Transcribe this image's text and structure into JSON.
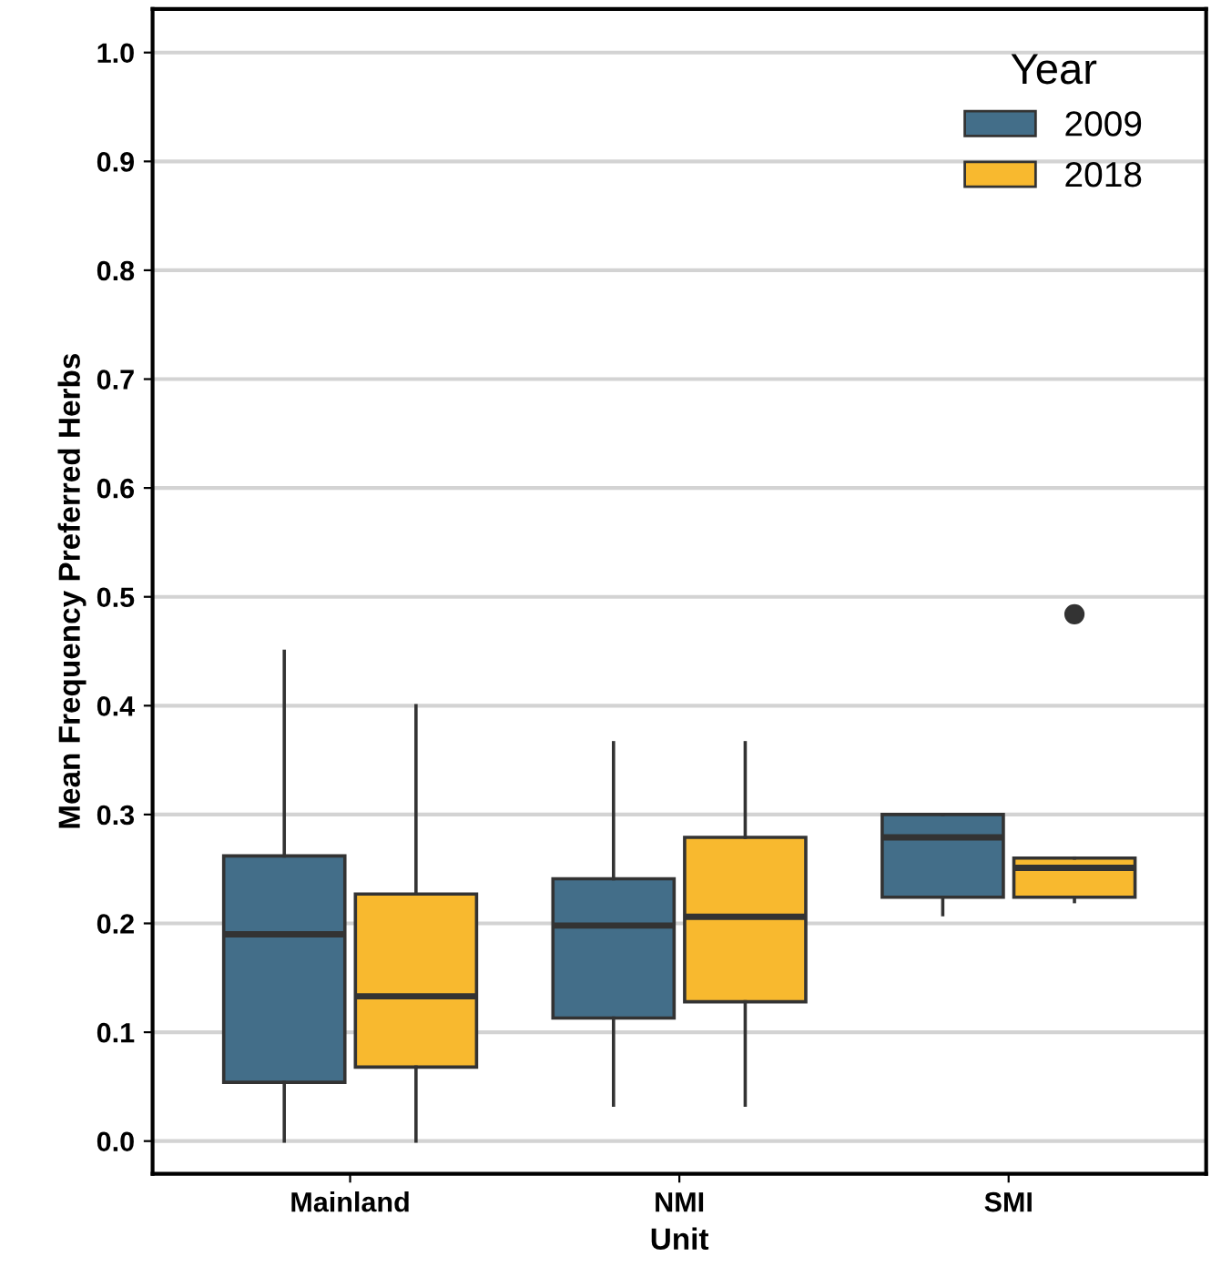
{
  "chart_data": {
    "type": "box",
    "xlabel": "Unit",
    "ylabel": "Mean Frequency Preferred Herbs",
    "legend_title": "Year",
    "legend": "top right",
    "grid": "y",
    "categories": [
      "Mainland",
      "NMI",
      "SMI"
    ],
    "ylim": [
      -0.03,
      1.04
    ],
    "yticks": [
      {
        "value": 0,
        "label": "0.0"
      },
      0.1,
      0.2,
      0.3,
      0.4,
      0.5,
      0.6,
      0.7,
      0.8,
      0.9,
      {
        "value": 1,
        "label": "1.0"
      }
    ],
    "series": [
      {
        "name": "2009",
        "color": "#436e89",
        "boxes": [
          {
            "low": 0,
            "q1": 0.054,
            "median": 0.19,
            "q3": 0.262,
            "high": 0.45
          },
          {
            "low": 0.033,
            "q1": 0.113,
            "median": 0.198,
            "q3": 0.241,
            "high": 0.366
          },
          {
            "low": 0.208,
            "q1": 0.224,
            "median": 0.279,
            "q3": 0.3,
            "high": 0.3
          }
        ]
      },
      {
        "name": "2018",
        "color": "#f8b92f",
        "boxes": [
          {
            "low": 0,
            "q1": 0.068,
            "median": 0.133,
            "q3": 0.227,
            "high": 0.4
          },
          {
            "low": 0.033,
            "q1": 0.128,
            "median": 0.206,
            "q3": 0.279,
            "high": 0.366
          },
          {
            "low": 0.22,
            "q1": 0.224,
            "median": 0.251,
            "q3": 0.26,
            "high": 0.26,
            "outliers": [
              0.484
            ]
          }
        ]
      }
    ]
  }
}
